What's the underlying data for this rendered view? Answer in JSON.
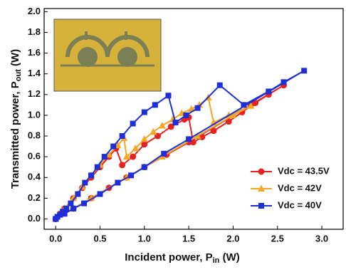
{
  "chart_data": {
    "type": "line",
    "x_label": {
      "text": "Incident power, P",
      "sub": "in",
      "unit": " (W)"
    },
    "y_label": {
      "text": "Transmitted power, P",
      "sub": "out",
      "unit": " (W)"
    },
    "xlim": [
      -0.13,
      3.24
    ],
    "ylim": [
      -0.1,
      2.03
    ],
    "xticks": [
      {
        "value": 0,
        "label": "0.0"
      },
      0.5,
      {
        "value": 1,
        "label": "1.0"
      },
      1.5,
      {
        "value": 2,
        "label": "2.0"
      },
      2.5,
      {
        "value": 3,
        "label": "3.0"
      }
    ],
    "yticks": [
      {
        "value": 0,
        "label": "0.0"
      },
      0.2,
      0.4,
      0.6,
      0.8,
      {
        "value": 1,
        "label": "1.0"
      },
      1.2,
      1.4,
      1.6,
      1.8,
      {
        "value": 2,
        "label": "2.0"
      }
    ],
    "legend": "right",
    "series": [
      {
        "name": "Vdc = 43.5V",
        "color": "#e8231f",
        "marker": "circle",
        "x": [
          0,
          0.05,
          0.1,
          0.2,
          0.3,
          0.4,
          0.5,
          0.6,
          0.68,
          0.75,
          0.87,
          1.0,
          1.15,
          1.3,
          1.45,
          1.5,
          1.55,
          1.65,
          1.78,
          1.95,
          2.1,
          2.25,
          2.4,
          2.57,
          2.2,
          1.5,
          1.25,
          1.0,
          0.8,
          0.6,
          0.4,
          0.2,
          0
        ],
        "values": [
          0,
          0.05,
          0.1,
          0.2,
          0.3,
          0.4,
          0.5,
          0.6,
          0.68,
          0.52,
          0.6,
          0.72,
          0.8,
          0.89,
          0.96,
          0.98,
          0.74,
          0.79,
          0.85,
          0.94,
          1.03,
          1.12,
          1.2,
          1.29,
          1.1,
          0.74,
          0.62,
          0.5,
          0.4,
          0.3,
          0.2,
          0.1,
          0
        ]
      },
      {
        "name": "Vdc = 42V",
        "color": "#f5a623",
        "marker": "triangle",
        "x": [
          0,
          0.1,
          0.2,
          0.3,
          0.4,
          0.5,
          0.6,
          0.7,
          0.77,
          0.8,
          0.9,
          1.0,
          1.1,
          1.2,
          1.32,
          1.42,
          1.53,
          1.62,
          1.72,
          1.78,
          1.95,
          2.2,
          2.0,
          1.6,
          1.2,
          0.8,
          0.4,
          0
        ],
        "values": [
          0,
          0.1,
          0.2,
          0.31,
          0.42,
          0.52,
          0.62,
          0.71,
          0.78,
          0.6,
          0.68,
          0.77,
          0.84,
          0.9,
          0.96,
          1.02,
          1.06,
          1.1,
          1.17,
          0.93,
          1.0,
          1.09,
          1.0,
          0.8,
          0.6,
          0.4,
          0.2,
          0
        ]
      },
      {
        "name": "Vdc = 40V",
        "color": "#1c2fd8",
        "marker": "square",
        "x": [
          0,
          0.02,
          0.05,
          0.08,
          0.12,
          0.17,
          0.25,
          0.33,
          0.4,
          0.47,
          0.55,
          0.65,
          0.75,
          0.87,
          1.0,
          1.12,
          1.27,
          1.35,
          1.47,
          1.6,
          1.85,
          2.12,
          2.4,
          2.57,
          2.8,
          1.5,
          1.22,
          1.0,
          0.85,
          0.7,
          0.5,
          0.32,
          0.2,
          0.1,
          0
        ],
        "values": [
          0,
          0.02,
          0.04,
          0.07,
          0.1,
          0.15,
          0.24,
          0.35,
          0.42,
          0.5,
          0.6,
          0.7,
          0.8,
          0.92,
          1.03,
          1.1,
          1.19,
          0.93,
          1.0,
          1.07,
          1.29,
          1.1,
          1.23,
          1.32,
          1.43,
          0.77,
          0.63,
          0.5,
          0.42,
          0.35,
          0.24,
          0.15,
          0.1,
          0.05,
          0
        ]
      }
    ]
  }
}
